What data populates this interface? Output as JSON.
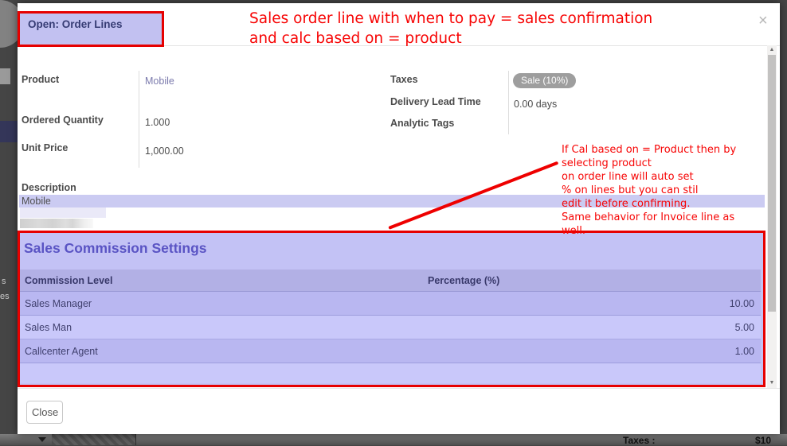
{
  "modal": {
    "title": "Open: Order Lines",
    "fields_left": [
      {
        "label": "Product",
        "value": "Mobile"
      },
      {
        "label": "Ordered Quantity",
        "value": "1.000"
      },
      {
        "label": "Unit Price",
        "value": "1,000.00"
      }
    ],
    "fields_right": [
      {
        "label": "Taxes",
        "value": "Sale (10%)"
      },
      {
        "label": "Delivery Lead Time",
        "value": "0.00 days"
      },
      {
        "label": "Analytic Tags",
        "value": ""
      }
    ],
    "description_label": "Description",
    "description_text": "Mobile",
    "commission": {
      "heading": "Sales Commission Settings",
      "columns": [
        "Commission Level",
        "Percentage (%)"
      ],
      "rows": [
        {
          "level": "Sales Manager",
          "percentage": "10.00"
        },
        {
          "level": "Sales Man",
          "percentage": "5.00"
        },
        {
          "level": "Callcenter Agent",
          "percentage": "1.00"
        }
      ]
    },
    "close_button_label": "Close"
  },
  "annotations": {
    "top_note_line1": "Sales order line with when to pay = sales confirmation",
    "top_note_line2": "and calc based on = product",
    "side_note_lines": [
      "If Cal based on = Product then by",
      "selecting product",
      "on order line will auto set",
      "% on lines but you can stil",
      "edit it before confirming.",
      "Same behavior for Invoice line as",
      "well."
    ]
  },
  "icons": {
    "close": "×",
    "scroll_up": "▲",
    "scroll_down": "▼"
  },
  "background_page": {
    "left_edge_labels": [
      "s",
      "es"
    ],
    "bottom_bar_taxes_label": "Taxes :",
    "bottom_bar_taxes_value": "$10"
  },
  "colors": {
    "annotation_red": "#ee0000",
    "highlight_purple": "#cbcbf2",
    "section_purple": "#c3c2f5",
    "row_dark_purple": "#b9b7f1",
    "row_light_purple": "#c9c8fa",
    "header_row_purple": "#b2b0e5",
    "heading_indigo": "#5a54c4",
    "link_purple": "#7c7bad",
    "badge_gray": "#9e9e9e"
  }
}
